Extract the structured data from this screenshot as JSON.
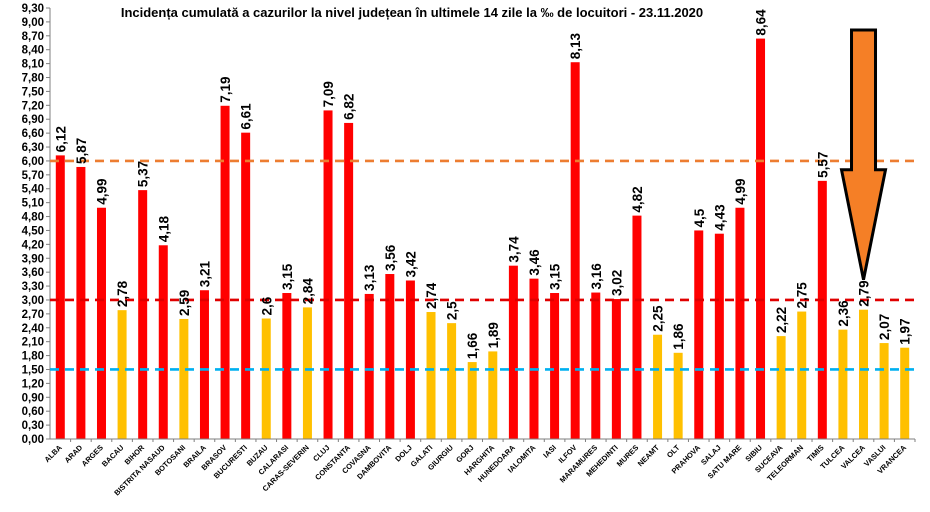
{
  "chart_data": {
    "type": "bar",
    "title": "Incidența cumulată a cazurilor la nivel județean în ultimele 14 zile la ‰ de locuitori - 23.11.2020",
    "ylim": [
      0,
      9.3
    ],
    "yticks": [
      "0,00",
      "0,30",
      "0,60",
      "0,90",
      "1,20",
      "1,50",
      "1,80",
      "2,10",
      "2,40",
      "2,70",
      "3,00",
      "3,30",
      "3,60",
      "3,90",
      "4,20",
      "4,50",
      "4,80",
      "5,10",
      "5,40",
      "5,70",
      "6,00",
      "6,30",
      "6,60",
      "6,90",
      "7,20",
      "7,50",
      "7,80",
      "8,10",
      "8,40",
      "8,70",
      "9,00",
      "9,30"
    ],
    "grid": false,
    "categories": [
      "ALBA",
      "ARAD",
      "ARGES",
      "BACAU",
      "BIHOR",
      "BISTRITA NASAUD",
      "BOTOSANI",
      "BRAILA",
      "BRASOV",
      "BUCURESTI",
      "BUZAU",
      "CALARASI",
      "CARAS-SEVERIN",
      "CLUJ",
      "CONSTANTA",
      "COVASNA",
      "DAMBOVITA",
      "DOLJ",
      "GALATI",
      "GIURGIU",
      "GORJ",
      "HARGHITA",
      "HUNEDOARA",
      "IALOMITA",
      "IASI",
      "ILFOV",
      "MARAMURES",
      "MEHEDINTI",
      "MURES",
      "NEAMT",
      "OLT",
      "PRAHOVA",
      "SALAJ",
      "SATU MARE",
      "SIBIU",
      "SUCEAVA",
      "TELEORMAN",
      "TIMIS",
      "TULCEA",
      "VALCEA",
      "VASLUI",
      "VRANCEA"
    ],
    "values": [
      6.12,
      5.87,
      4.99,
      2.78,
      5.37,
      4.18,
      2.59,
      3.21,
      7.19,
      6.61,
      2.6,
      3.15,
      2.84,
      7.09,
      6.82,
      3.13,
      3.56,
      3.42,
      2.74,
      2.5,
      1.66,
      1.89,
      3.74,
      3.46,
      3.15,
      8.13,
      3.16,
      3.02,
      4.82,
      2.25,
      1.86,
      4.5,
      4.43,
      4.99,
      8.64,
      2.22,
      2.75,
      5.57,
      2.36,
      2.79,
      2.07,
      1.97
    ],
    "value_labels": [
      "6,12",
      "5,87",
      "4,99",
      "2,78",
      "5,37",
      "4,18",
      "2,59",
      "3,21",
      "7,19",
      "6,61",
      "2,6",
      "3,15",
      "2,84",
      "7,09",
      "6,82",
      "3,13",
      "3,56",
      "3,42",
      "2,74",
      "2,5",
      "1,66",
      "1,89",
      "3,74",
      "3,46",
      "3,15",
      "8,13",
      "3,16",
      "3,02",
      "4,82",
      "2,25",
      "1,86",
      "4,5",
      "4,43",
      "4,99",
      "8,64",
      "2,22",
      "2,75",
      "5,57",
      "2,36",
      "2,79",
      "2,07",
      "1,97"
    ],
    "bar_colors": [
      "red",
      "red",
      "red",
      "yellow",
      "red",
      "red",
      "yellow",
      "red",
      "red",
      "red",
      "yellow",
      "red",
      "yellow",
      "red",
      "red",
      "red",
      "red",
      "red",
      "yellow",
      "yellow",
      "yellow",
      "yellow",
      "red",
      "red",
      "red",
      "red",
      "red",
      "red",
      "red",
      "yellow",
      "yellow",
      "red",
      "red",
      "red",
      "red",
      "yellow",
      "yellow",
      "red",
      "yellow",
      "yellow",
      "yellow",
      "yellow"
    ],
    "thresholds": [
      {
        "value": 6.0,
        "color": "#ED7D31",
        "style": "dashed"
      },
      {
        "value": 3.0,
        "color": "#E00000",
        "style": "dashed"
      },
      {
        "value": 1.5,
        "color": "#00B0F0",
        "style": "dashed"
      }
    ],
    "highlight": {
      "category": "VALCEA",
      "marker": "down-arrow",
      "fill": "#F57F26",
      "stroke": "#000000"
    }
  },
  "colors": {
    "red": "#FF0000",
    "yellow": "#FFC000",
    "axis": "#7f7f7f"
  }
}
